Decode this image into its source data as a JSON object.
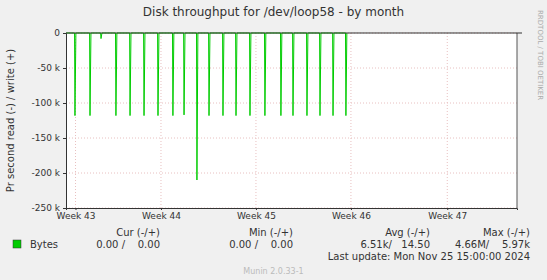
{
  "chart_data": {
    "type": "line",
    "title": "Disk throughput for /dev/loop58 - by month",
    "y_label": "Pr second read (-) / write (+)",
    "x": [
      0,
      0.63,
      0.66,
      0.73,
      1.74,
      1.77,
      1.84,
      2.55,
      2.58,
      2.65,
      3.65,
      3.68,
      3.75,
      4.69,
      4.72,
      4.79,
      5.72,
      5.75,
      5.82,
      6.75,
      6.78,
      6.85,
      7.85,
      7.88,
      7.95,
      8.67,
      8.7,
      8.77,
      9.62,
      9.65,
      9.72,
      10.51,
      10.54,
      10.61,
      11.54,
      11.57,
      11.64,
      12.5,
      12.53,
      12.6,
      13.53,
      13.56,
      13.63,
      14.63,
      14.66,
      14.73,
      15.81,
      15.84,
      15.91,
      16.7,
      16.73,
      16.8,
      17.73,
      17.76,
      17.83,
      18.69,
      18.72,
      18.79,
      19.65,
      19.68,
      19.75,
      20.6,
      20.63,
      20.7
    ],
    "series": [
      {
        "name": "Bytes",
        "color": "#00cc00",
        "values": [
          0,
          0,
          -118000,
          0,
          0,
          -118000,
          0,
          0,
          -8000,
          0,
          0,
          -118000,
          0,
          0,
          -118000,
          0,
          0,
          -118000,
          0,
          0,
          -118000,
          0,
          0,
          -118000,
          0,
          0,
          -117000,
          0,
          0,
          -210000,
          0,
          0,
          -118000,
          0,
          0,
          -118000,
          0,
          0,
          -118000,
          0,
          0,
          -118000,
          0,
          0,
          -118000,
          0,
          0,
          -118000,
          0,
          0,
          -118000,
          0,
          0,
          -118000,
          0,
          0,
          -118000,
          0,
          0,
          -118000,
          0,
          0,
          -118000,
          0
        ]
      }
    ],
    "xlim": [
      0,
      33.24
    ],
    "xticks": [
      {
        "value": 0.7,
        "label": "Week 43"
      },
      {
        "value": 7,
        "label": "Week 44"
      },
      {
        "value": 14,
        "label": "Week 45"
      },
      {
        "value": 21,
        "label": "Week 46"
      },
      {
        "value": 28.1,
        "label": "Week 47"
      }
    ],
    "ylim": [
      -250000,
      0
    ],
    "yticks": [
      {
        "value": -250000,
        "label": "-250 k"
      },
      {
        "value": -200000,
        "label": "-200 k"
      },
      {
        "value": -150000,
        "label": "-150 k"
      },
      {
        "value": -100000,
        "label": "-100 k"
      },
      {
        "value": -50000,
        "label": "-50 k"
      },
      0
    ],
    "grid": true,
    "legend_table": {
      "columns": [
        "Cur (-/+)",
        "Min (-/+)",
        "Avg (-/+)",
        "Max (-/+)"
      ],
      "cells": [
        "0.00 /    0.00",
        "0.00 /    0.00",
        "6.51k/   14.50",
        "4.66M/    5.97k"
      ]
    },
    "last_update": "Last update: Mon Nov 25 15:00:00 2024",
    "watermark": "RRDTOOL / TOBI OETIKER",
    "footer": "Munin 2.0.33-1"
  }
}
